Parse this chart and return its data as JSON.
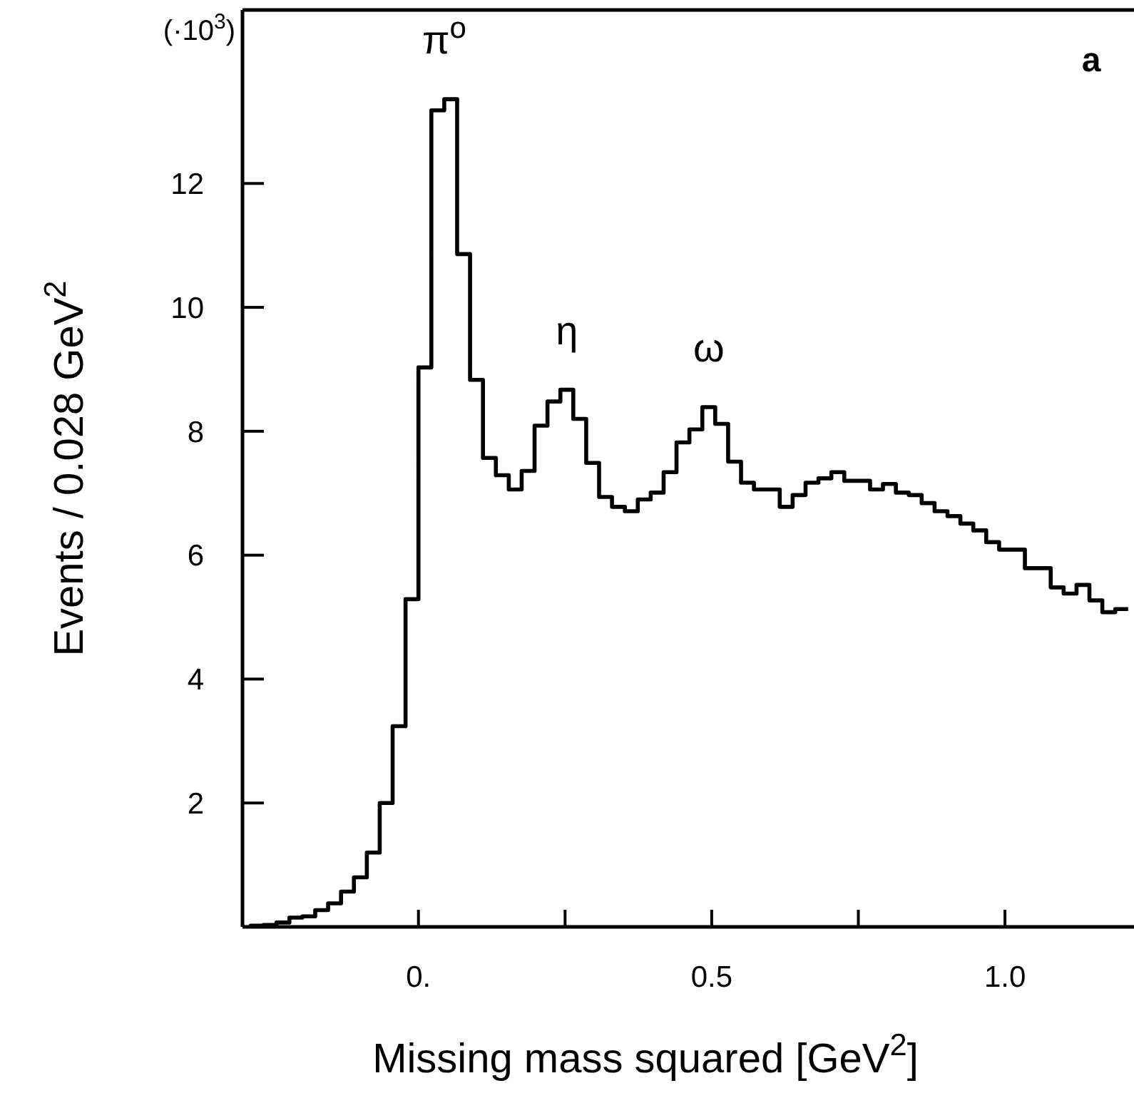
{
  "chart_data": {
    "type": "histogram",
    "xlabel": "Missing mass squared [GeV$^{2}$]",
    "ylabel": "Events / 0.028 GeV$^{2}$",
    "color": "#000000",
    "bins": [
      -0.286,
      -0.264,
      -0.242,
      -0.22,
      -0.198,
      -0.176,
      -0.154,
      -0.132,
      -0.11,
      -0.088,
      -0.066,
      -0.044,
      -0.022,
      0,
      0.022,
      0.044,
      0.066,
      0.088,
      0.11,
      0.132,
      0.154,
      0.176,
      0.198,
      0.22,
      0.242,
      0.264,
      0.286,
      0.308,
      0.33,
      0.352,
      0.374,
      0.396,
      0.418,
      0.44,
      0.462,
      0.484,
      0.506,
      0.528,
      0.55,
      0.572,
      0.594,
      0.616,
      0.638,
      0.66,
      0.682,
      0.704,
      0.726,
      0.748,
      0.77,
      0.792,
      0.814,
      0.836,
      0.858,
      0.88,
      0.902,
      0.924,
      0.946,
      0.968,
      0.99,
      1.012,
      1.034,
      1.056,
      1.078,
      1.1,
      1.122,
      1.144,
      1.166,
      1.188,
      1.21
    ],
    "values": [
      0.02,
      0.03,
      0.07,
      0.15,
      0.17,
      0.27,
      0.38,
      0.57,
      0.8,
      1.2,
      2.0,
      3.24,
      5.29,
      9.03,
      13.18,
      13.36,
      10.86,
      8.83,
      7.57,
      7.29,
      7.06,
      7.36,
      8.09,
      8.48,
      8.67,
      8.2,
      7.49,
      6.94,
      6.78,
      6.71,
      6.9,
      7.01,
      7.34,
      7.82,
      8.03,
      8.39,
      8.12,
      7.51,
      7.17,
      7.06,
      7.06,
      6.78,
      6.97,
      7.17,
      7.24,
      7.34,
      7.2,
      7.2,
      7.06,
      7.15,
      7.01,
      6.97,
      6.84,
      6.71,
      6.63,
      6.51,
      6.4,
      6.21,
      6.09,
      6.09,
      5.79,
      5.79,
      5.48,
      5.38,
      5.52,
      5.27,
      5.08,
      5.13
    ],
    "xlim": [
      -0.3,
      1.22
    ],
    "ylim": [
      0,
      14.8
    ],
    "xticks": [
      {
        "value": 0,
        "label": "0."
      },
      {
        "value": 0.25,
        "label": null
      },
      {
        "value": 0.5,
        "label": "0.5"
      },
      {
        "value": 0.75,
        "label": null
      },
      {
        "value": 1.0,
        "label": "1.0"
      }
    ],
    "yticks": [
      2,
      4,
      6,
      8,
      10,
      12
    ],
    "annotations": [
      "(·10$^{3}$)",
      "a",
      {
        "text": "π$^{o}$",
        "x": 0.044,
        "y": 13.36
      },
      {
        "text": "η",
        "x": 0.253,
        "y": 8.67
      },
      {
        "text": "ω",
        "x": 0.495,
        "y": 8.39
      }
    ]
  }
}
